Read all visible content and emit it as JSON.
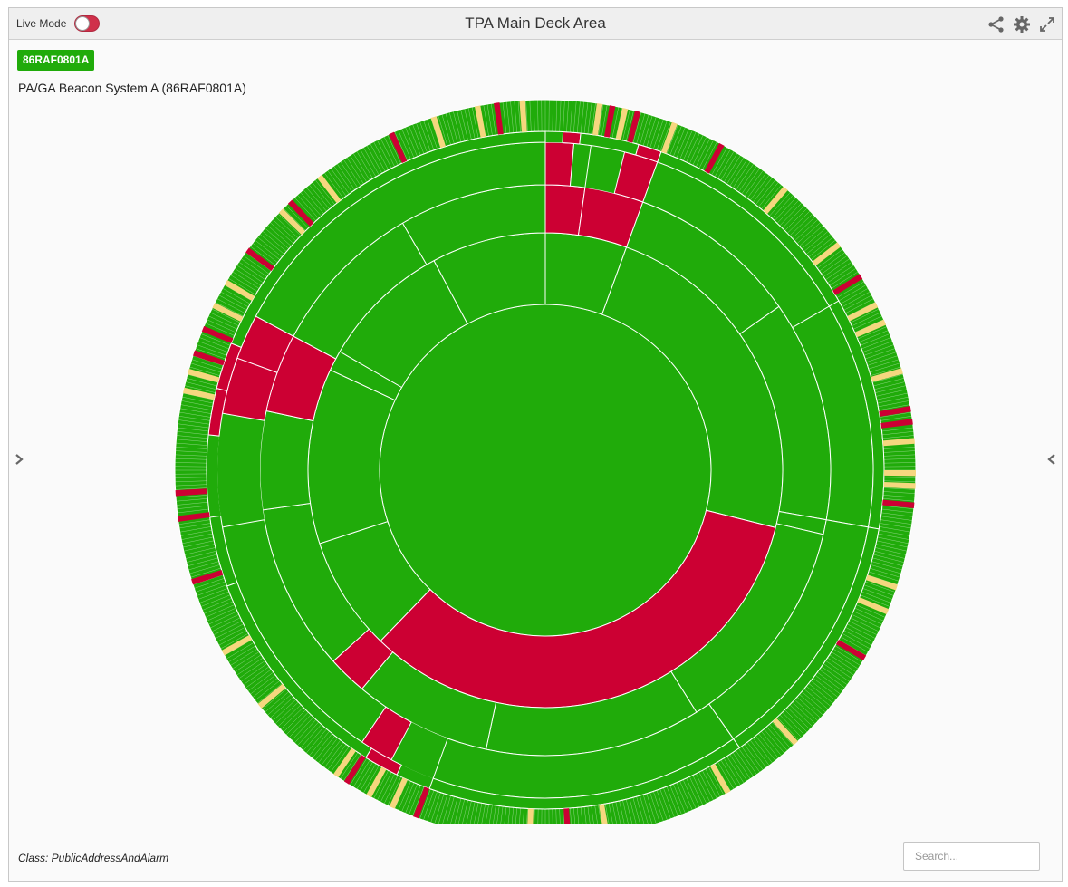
{
  "window": {
    "title": "TPA Main Deck Area",
    "live_mode_label": "Live Mode",
    "live_mode_on": false,
    "icons": [
      "share-icon",
      "gear-icon",
      "expand-icon"
    ]
  },
  "selection": {
    "badge": "86RAF0801A",
    "name": "PA/GA Beacon System A (86RAF0801A)"
  },
  "footer": {
    "class_text": "Class: PublicAddressAndAlarm",
    "search_placeholder": "Search..."
  },
  "colors": {
    "ok": "#20ab0a",
    "alarm": "#cc0033",
    "warning": "#f5d77f",
    "panel_bg": "#fafafa"
  },
  "chart_data": {
    "type": "sunburst",
    "rings": [
      {
        "level": 1,
        "segments": [
          {
            "start": 0,
            "end": 360,
            "status": "ok"
          }
        ]
      },
      {
        "level": 2,
        "segments": [
          {
            "start": 0,
            "end": 20,
            "status": "ok"
          },
          {
            "start": 20,
            "end": 104,
            "status": "ok"
          },
          {
            "start": 104,
            "end": 224,
            "status": "alarm"
          },
          {
            "start": 224,
            "end": 252,
            "status": "ok"
          },
          {
            "start": 252,
            "end": 295,
            "status": "ok"
          },
          {
            "start": 295,
            "end": 300,
            "status": "ok"
          },
          {
            "start": 300,
            "end": 332,
            "status": "ok"
          },
          {
            "start": 332,
            "end": 360,
            "status": "ok"
          }
        ]
      },
      {
        "level": 3,
        "segments": [
          {
            "start": 0,
            "end": 8,
            "status": "alarm"
          },
          {
            "start": 8,
            "end": 20,
            "status": "alarm"
          },
          {
            "start": 20,
            "end": 55,
            "status": "ok"
          },
          {
            "start": 55,
            "end": 100,
            "status": "ok"
          },
          {
            "start": 100,
            "end": 103,
            "status": "ok"
          },
          {
            "start": 103,
            "end": 148,
            "status": "ok"
          },
          {
            "start": 148,
            "end": 192,
            "status": "ok"
          },
          {
            "start": 192,
            "end": 220,
            "status": "ok"
          },
          {
            "start": 220,
            "end": 228,
            "status": "alarm"
          },
          {
            "start": 228,
            "end": 262,
            "status": "ok"
          },
          {
            "start": 262,
            "end": 282,
            "status": "ok"
          },
          {
            "start": 282,
            "end": 298,
            "status": "alarm"
          },
          {
            "start": 298,
            "end": 330,
            "status": "ok"
          },
          {
            "start": 330,
            "end": 360,
            "status": "ok"
          }
        ]
      },
      {
        "level": 4,
        "segments": [
          {
            "start": 0,
            "end": 5,
            "status": "alarm"
          },
          {
            "start": 5,
            "end": 8,
            "status": "ok"
          },
          {
            "start": 14,
            "end": 20,
            "status": "alarm"
          },
          {
            "start": 20,
            "end": 60,
            "status": "ok"
          },
          {
            "start": 60,
            "end": 100,
            "status": "ok"
          },
          {
            "start": 100,
            "end": 145,
            "status": "ok"
          },
          {
            "start": 145,
            "end": 200,
            "status": "ok"
          },
          {
            "start": 208,
            "end": 214,
            "status": "alarm"
          },
          {
            "start": 214,
            "end": 260,
            "status": "ok"
          },
          {
            "start": 280,
            "end": 290,
            "status": "alarm"
          },
          {
            "start": 290,
            "end": 298,
            "status": "alarm"
          },
          {
            "start": 298,
            "end": 360,
            "status": "ok"
          }
        ]
      },
      {
        "level": 5,
        "segments": [
          {
            "start": 3,
            "end": 6,
            "status": "alarm"
          },
          {
            "start": 6,
            "end": 16,
            "status": "ok"
          },
          {
            "start": 16,
            "end": 20,
            "status": "alarm"
          },
          {
            "start": 20,
            "end": 60,
            "status": "ok"
          },
          {
            "start": 60,
            "end": 100,
            "status": "ok"
          },
          {
            "start": 100,
            "end": 145,
            "status": "ok"
          },
          {
            "start": 145,
            "end": 200,
            "status": "ok"
          },
          {
            "start": 206,
            "end": 212,
            "status": "alarm"
          },
          {
            "start": 212,
            "end": 250,
            "status": "ok"
          },
          {
            "start": 250,
            "end": 262,
            "status": "ok"
          },
          {
            "start": 276,
            "end": 284,
            "status": "alarm"
          },
          {
            "start": 284,
            "end": 292,
            "status": "alarm"
          },
          {
            "start": 292,
            "end": 360,
            "status": "ok"
          }
        ]
      },
      {
        "level": 6,
        "segments": [
          {
            "start": 0,
            "end": 360,
            "status": "ok"
          }
        ]
      }
    ],
    "outer_marks": [
      {
        "angle": 8,
        "status": "warning"
      },
      {
        "angle": 10,
        "status": "alarm"
      },
      {
        "angle": 12,
        "status": "warning"
      },
      {
        "angle": 14,
        "status": "alarm"
      },
      {
        "angle": 20,
        "status": "warning"
      },
      {
        "angle": 28,
        "status": "alarm"
      },
      {
        "angle": 40,
        "status": "warning"
      },
      {
        "angle": 52,
        "status": "warning"
      },
      {
        "angle": 58,
        "status": "alarm"
      },
      {
        "angle": 63,
        "status": "warning"
      },
      {
        "angle": 66,
        "status": "warning"
      },
      {
        "angle": 74,
        "status": "warning"
      },
      {
        "angle": 80,
        "status": "alarm"
      },
      {
        "angle": 82,
        "status": "alarm"
      },
      {
        "angle": 85,
        "status": "warning"
      },
      {
        "angle": 90,
        "status": "warning"
      },
      {
        "angle": 92,
        "status": "warning"
      },
      {
        "angle": 95,
        "status": "alarm"
      },
      {
        "angle": 108,
        "status": "warning"
      },
      {
        "angle": 112,
        "status": "warning"
      },
      {
        "angle": 120,
        "status": "alarm"
      },
      {
        "angle": 137,
        "status": "warning"
      },
      {
        "angle": 150,
        "status": "warning"
      },
      {
        "angle": 170,
        "status": "warning"
      },
      {
        "angle": 176,
        "status": "alarm"
      },
      {
        "angle": 182,
        "status": "warning"
      },
      {
        "angle": 200,
        "status": "alarm"
      },
      {
        "angle": 204,
        "status": "warning"
      },
      {
        "angle": 208,
        "status": "warning"
      },
      {
        "angle": 212,
        "status": "alarm"
      },
      {
        "angle": 214,
        "status": "warning"
      },
      {
        "angle": 230,
        "status": "warning"
      },
      {
        "angle": 240,
        "status": "warning"
      },
      {
        "angle": 252,
        "status": "alarm"
      },
      {
        "angle": 262,
        "status": "alarm"
      },
      {
        "angle": 266,
        "status": "alarm"
      },
      {
        "angle": 282,
        "status": "warning"
      },
      {
        "angle": 285,
        "status": "warning"
      },
      {
        "angle": 288,
        "status": "alarm"
      },
      {
        "angle": 292,
        "status": "alarm"
      },
      {
        "angle": 296,
        "status": "warning"
      },
      {
        "angle": 300,
        "status": "warning"
      },
      {
        "angle": 306,
        "status": "alarm"
      },
      {
        "angle": 314,
        "status": "warning"
      },
      {
        "angle": 316,
        "status": "alarm"
      },
      {
        "angle": 322,
        "status": "warning"
      },
      {
        "angle": 335,
        "status": "alarm"
      },
      {
        "angle": 342,
        "status": "warning"
      },
      {
        "angle": 349,
        "status": "warning"
      },
      {
        "angle": 352,
        "status": "alarm"
      },
      {
        "angle": 356,
        "status": "warning"
      }
    ]
  }
}
